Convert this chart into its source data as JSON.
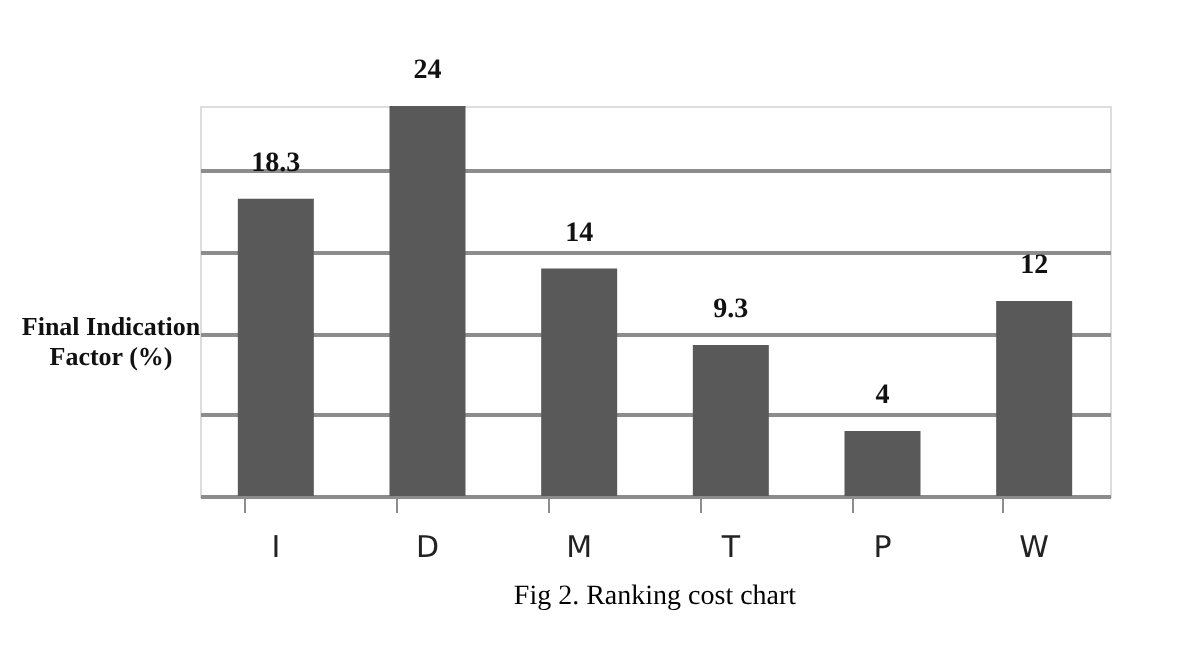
{
  "chart_data": {
    "type": "bar",
    "ylabel": "Final Indication Factor (%)",
    "categories": [
      "I",
      "D",
      "M",
      "T",
      "P",
      "W"
    ],
    "values": [
      18.3,
      24,
      14,
      9.3,
      4,
      12
    ],
    "color": "#595959",
    "data_labels": true,
    "grid": "y",
    "tick_labels": "x",
    "annotations": [
      "Fig 2. Ranking cost chart"
    ]
  }
}
